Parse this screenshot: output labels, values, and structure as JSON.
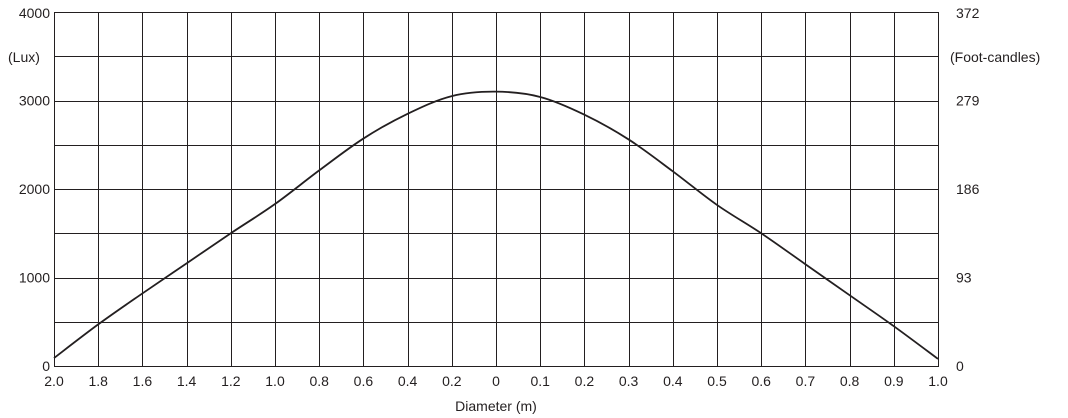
{
  "chart_data": {
    "type": "line",
    "xlabel": "Diameter (m)",
    "x_tick_labels": [
      "2.0",
      "1.8",
      "1.6",
      "1.4",
      "1.2",
      "1.0",
      "0.8",
      "0.6",
      "0.4",
      "0.2",
      "0",
      "0.1",
      "0.2",
      "0.3",
      "0.4",
      "0.5",
      "0.6",
      "0.7",
      "0.8",
      "0.9",
      "1.0"
    ],
    "ylabel_left": "(Lux)",
    "ylabel_right": "(Foot-candles)",
    "y_ticks_left": [
      "0",
      "1000",
      "2000",
      "3000",
      "4000"
    ],
    "y_ticks_right": [
      "0",
      "93",
      "186",
      "279",
      "372"
    ],
    "ylim": [
      0,
      4000
    ],
    "grid": true,
    "series": [
      {
        "x": [
          "2.0",
          "1.8",
          "1.6",
          "1.4",
          "1.2",
          "1.0",
          "0.8",
          "0.6",
          "0.4",
          "0.2",
          "0",
          "0.1",
          "0.2",
          "0.3",
          "0.4",
          "0.5",
          "0.6",
          "0.7",
          "0.8",
          "0.9",
          "1.0"
        ],
        "values": [
          90,
          470,
          820,
          1160,
          1500,
          1830,
          2210,
          2570,
          2850,
          3050,
          3100,
          3040,
          2840,
          2560,
          2200,
          1820,
          1500,
          1150,
          800,
          450,
          80
        ]
      }
    ]
  }
}
